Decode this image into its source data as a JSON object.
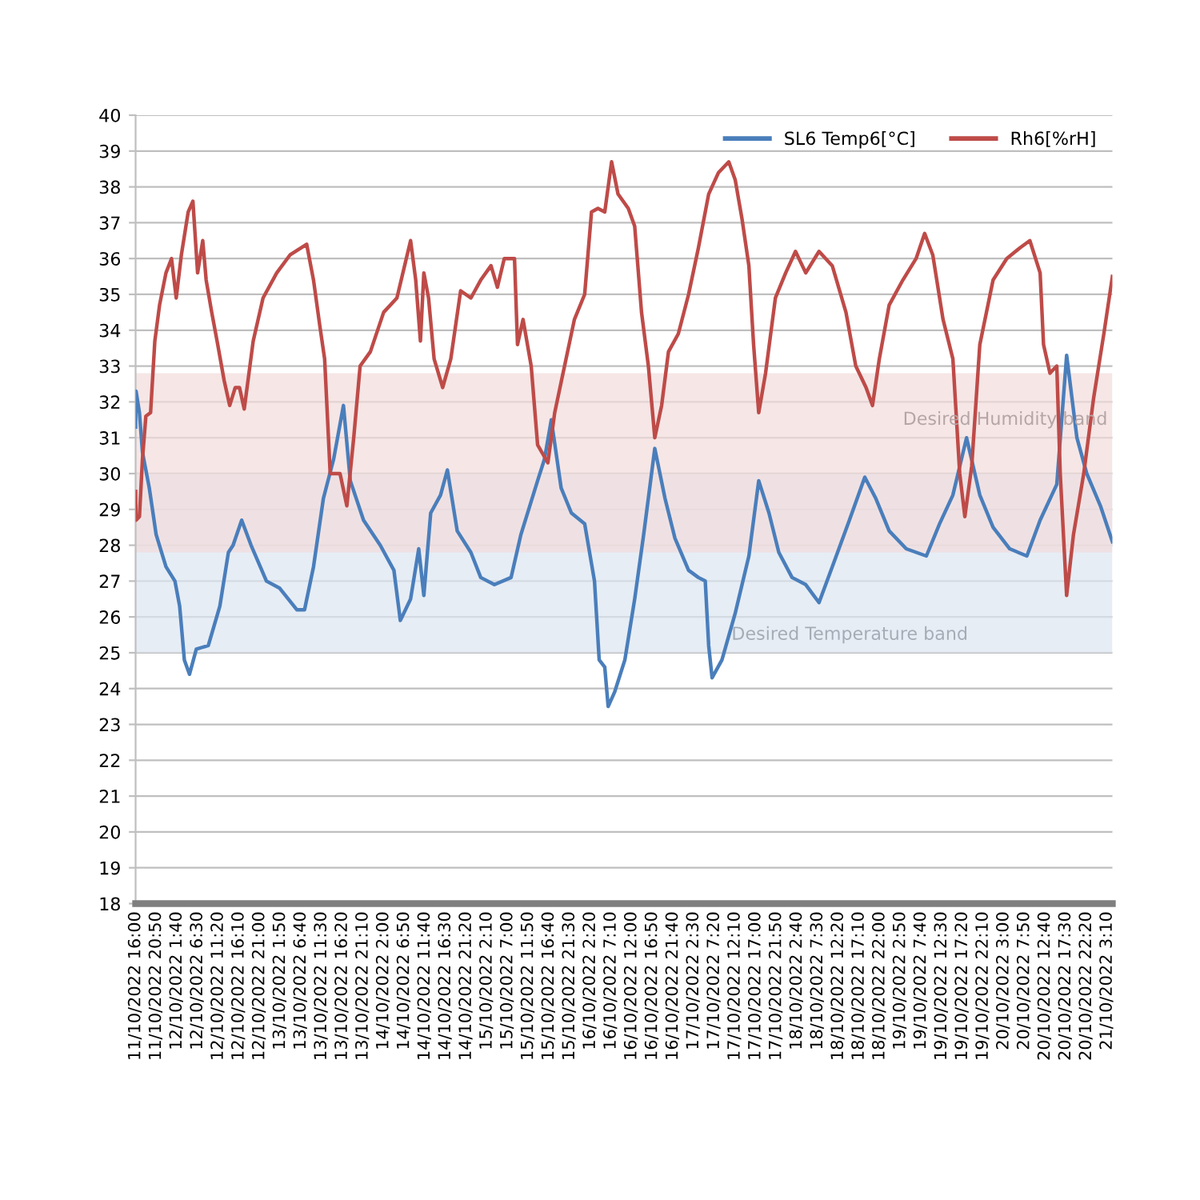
{
  "chart_data": {
    "type": "line",
    "series": [
      {
        "name": "SL6 Temp6[°C]",
        "color": "#4a7ebb",
        "x": [
          "2022-10-11T16:00",
          "2022-10-11T16:06",
          "2022-10-11T16:54",
          "2022-10-11T17:36",
          "2022-10-11T19:12",
          "2022-10-11T20:48",
          "2022-10-11T23:06",
          "2022-10-12T01:12",
          "2022-10-12T02:18",
          "2022-10-12T03:24",
          "2022-10-12T04:36",
          "2022-10-12T06:12",
          "2022-10-12T09:00",
          "2022-10-12T11:42",
          "2022-10-12T13:42",
          "2022-10-12T14:48",
          "2022-10-12T16:48",
          "2022-10-12T19:00",
          "2022-10-12T22:36",
          "2022-10-13T01:42",
          "2022-10-13T05:42",
          "2022-10-13T07:30",
          "2022-10-13T09:36",
          "2022-10-13T11:54",
          "2022-10-13T14:18",
          "2022-10-13T16:36",
          "2022-10-13T18:12",
          "2022-10-13T21:18",
          "2022-10-14T01:12",
          "2022-10-14T04:24",
          "2022-10-14T05:54",
          "2022-10-14T08:18",
          "2022-10-14T10:12",
          "2022-10-14T11:24",
          "2022-10-14T13:00",
          "2022-10-14T15:18",
          "2022-10-14T16:54",
          "2022-10-14T19:12",
          "2022-10-14T22:24",
          "2022-10-15T00:42",
          "2022-10-15T03:54",
          "2022-10-15T07:48",
          "2022-10-15T10:06",
          "2022-10-15T14:00",
          "2022-10-15T15:36",
          "2022-10-15T17:12",
          "2022-10-15T19:30",
          "2022-10-15T21:54",
          "2022-10-16T01:00",
          "2022-10-16T03:18",
          "2022-10-16T04:24",
          "2022-10-16T05:42",
          "2022-10-16T06:30",
          "2022-10-16T08:00",
          "2022-10-16T10:24",
          "2022-10-16T12:42",
          "2022-10-16T14:48",
          "2022-10-16T17:24",
          "2022-10-16T19:48",
          "2022-10-16T22:06",
          "2022-10-17T01:18",
          "2022-10-17T03:36",
          "2022-10-17T05:12",
          "2022-10-17T06:00",
          "2022-10-17T06:48",
          "2022-10-17T09:06",
          "2022-10-17T12:12",
          "2022-10-17T15:24",
          "2022-10-17T17:42",
          "2022-10-17T20:06",
          "2022-10-17T22:24",
          "2022-10-18T01:30",
          "2022-10-18T04:42",
          "2022-10-18T07:48",
          "2022-10-18T10:54",
          "2022-10-18T14:54",
          "2022-10-18T18:30",
          "2022-10-18T21:06",
          "2022-10-19T00:12",
          "2022-10-19T04:12",
          "2022-10-19T08:54",
          "2022-10-19T12:00",
          "2022-10-19T15:06",
          "2022-10-19T18:18",
          "2022-10-19T21:24",
          "2022-10-20T00:30",
          "2022-10-20T04:24",
          "2022-10-20T08:24",
          "2022-10-20T11:30",
          "2022-10-20T15:24",
          "2022-10-20T17:42",
          "2022-10-20T20:06",
          "2022-10-20T22:24",
          "2022-10-21T01:36",
          "2022-10-21T04:24"
        ],
        "values": [
          31.3,
          32.3,
          31.7,
          30.6,
          29.6,
          28.3,
          27.4,
          27.0,
          26.3,
          24.8,
          24.4,
          25.1,
          25.2,
          26.3,
          27.8,
          28.0,
          28.7,
          28.0,
          27.0,
          26.8,
          26.2,
          26.2,
          27.4,
          29.3,
          30.4,
          31.9,
          29.8,
          28.7,
          28.0,
          27.3,
          25.9,
          26.5,
          27.9,
          26.6,
          28.9,
          29.4,
          30.1,
          28.4,
          27.8,
          27.1,
          26.9,
          27.1,
          28.3,
          29.8,
          30.4,
          31.5,
          29.6,
          28.9,
          28.6,
          27.0,
          24.8,
          24.6,
          23.5,
          23.9,
          24.8,
          26.5,
          28.3,
          30.7,
          29.3,
          28.2,
          27.3,
          27.1,
          27.0,
          25.2,
          24.3,
          24.8,
          26.1,
          27.7,
          29.8,
          28.9,
          27.8,
          27.1,
          26.9,
          26.4,
          27.4,
          28.7,
          29.9,
          29.3,
          28.4,
          27.9,
          27.7,
          28.6,
          29.4,
          31.0,
          29.4,
          28.5,
          27.9,
          27.7,
          28.7,
          29.7,
          33.3,
          31.0,
          30.0,
          29.1,
          28.1
        ]
      },
      {
        "name": "Rh6[%rH]",
        "color": "#be4b48",
        "x": [
          "2022-10-11T16:00",
          "2022-10-11T16:06",
          "2022-10-11T16:54",
          "2022-10-11T17:36",
          "2022-10-11T18:24",
          "2022-10-11T19:30",
          "2022-10-11T20:30",
          "2022-10-11T21:36",
          "2022-10-11T23:06",
          "2022-10-12T00:24",
          "2022-10-12T01:30",
          "2022-10-12T02:42",
          "2022-10-12T04:18",
          "2022-10-12T05:24",
          "2022-10-12T06:30",
          "2022-10-12T07:42",
          "2022-10-12T08:30",
          "2022-10-12T09:48",
          "2022-10-12T11:12",
          "2022-10-12T12:42",
          "2022-10-12T14:00",
          "2022-10-12T15:18",
          "2022-10-12T16:18",
          "2022-10-12T17:24",
          "2022-10-12T19:30",
          "2022-10-12T21:48",
          "2022-10-13T01:00",
          "2022-10-13T04:06",
          "2022-10-13T08:00",
          "2022-10-13T09:36",
          "2022-10-13T11:06",
          "2022-10-13T12:12",
          "2022-10-13T13:30",
          "2022-10-13T15:48",
          "2022-10-13T17:24",
          "2022-10-13T19:00",
          "2022-10-13T20:30",
          "2022-10-13T22:54",
          "2022-10-14T02:00",
          "2022-10-14T05:06",
          "2022-10-14T08:18",
          "2022-10-14T09:30",
          "2022-10-14T10:36",
          "2022-10-14T11:24",
          "2022-10-14T12:30",
          "2022-10-14T13:48",
          "2022-10-14T15:48",
          "2022-10-14T17:42",
          "2022-10-14T20:00",
          "2022-10-14T22:24",
          "2022-10-15T00:42",
          "2022-10-15T03:06",
          "2022-10-15T04:36",
          "2022-10-15T06:12",
          "2022-10-15T08:36",
          "2022-10-15T09:18",
          "2022-10-15T10:36",
          "2022-10-15T12:30",
          "2022-10-15T14:00",
          "2022-10-15T16:24",
          "2022-10-15T18:00",
          "2022-10-15T20:18",
          "2022-10-15T22:36",
          "2022-10-16T01:00",
          "2022-10-16T02:36",
          "2022-10-16T04:06",
          "2022-10-16T05:42",
          "2022-10-16T07:18",
          "2022-10-16T08:48",
          "2022-10-16T11:12",
          "2022-10-16T12:42",
          "2022-10-16T14:18",
          "2022-10-16T15:54",
          "2022-10-16T17:24",
          "2022-10-16T19:00",
          "2022-10-16T20:36",
          "2022-10-16T22:54",
          "2022-10-17T01:18",
          "2022-10-17T03:36",
          "2022-10-17T06:00",
          "2022-10-17T08:18",
          "2022-10-17T10:42",
          "2022-10-17T12:12",
          "2022-10-17T13:48",
          "2022-10-17T15:24",
          "2022-10-17T16:30",
          "2022-10-17T17:42",
          "2022-10-17T19:18",
          "2022-10-17T21:36",
          "2022-10-18T00:00",
          "2022-10-18T02:18",
          "2022-10-18T04:42",
          "2022-10-18T07:48",
          "2022-10-18T10:54",
          "2022-10-18T14:06",
          "2022-10-18T16:24",
          "2022-10-18T18:48",
          "2022-10-18T20:18",
          "2022-10-18T21:54",
          "2022-10-19T00:12",
          "2022-10-19T03:24",
          "2022-10-19T06:30",
          "2022-10-19T08:30",
          "2022-10-19T10:24",
          "2022-10-19T12:48",
          "2022-10-19T15:06",
          "2022-10-19T16:42",
          "2022-10-19T17:54",
          "2022-10-19T19:30",
          "2022-10-19T21:24",
          "2022-10-20T00:30",
          "2022-10-20T03:42",
          "2022-10-20T06:48",
          "2022-10-20T09:06",
          "2022-10-20T11:30",
          "2022-10-20T12:18",
          "2022-10-20T13:48",
          "2022-10-20T15:24",
          "2022-10-20T16:12",
          "2022-10-20T17:42",
          "2022-10-20T19:18",
          "2022-10-20T21:42",
          "2022-10-21T00:00",
          "2022-10-21T02:24",
          "2022-10-21T04:24"
        ],
        "values": [
          29.5,
          28.7,
          28.8,
          30.4,
          31.6,
          31.7,
          33.7,
          34.7,
          35.6,
          36.0,
          34.9,
          36.1,
          37.3,
          37.6,
          35.6,
          36.5,
          35.4,
          34.5,
          33.6,
          32.6,
          31.9,
          32.4,
          32.4,
          31.8,
          33.7,
          34.9,
          35.6,
          36.1,
          36.4,
          35.4,
          34.1,
          33.2,
          30.0,
          30.0,
          29.1,
          31.0,
          33.0,
          33.4,
          34.5,
          34.9,
          36.5,
          35.4,
          33.7,
          35.6,
          34.9,
          33.2,
          32.4,
          33.2,
          35.1,
          34.9,
          35.4,
          35.8,
          35.2,
          36.0,
          36.0,
          33.6,
          34.3,
          33.0,
          30.8,
          30.3,
          31.7,
          33.0,
          34.3,
          35.0,
          37.3,
          37.4,
          37.3,
          38.7,
          37.8,
          37.4,
          36.9,
          34.5,
          33.0,
          31.0,
          31.9,
          33.4,
          33.9,
          35.0,
          36.3,
          37.8,
          38.4,
          38.7,
          38.2,
          37.1,
          35.8,
          33.6,
          31.7,
          32.8,
          34.9,
          35.6,
          36.2,
          35.6,
          36.2,
          35.8,
          34.5,
          33.0,
          32.4,
          31.9,
          33.2,
          34.7,
          35.4,
          36.0,
          36.7,
          36.1,
          34.3,
          33.2,
          30.0,
          28.8,
          30.2,
          33.6,
          35.4,
          36.0,
          36.3,
          36.5,
          35.6,
          33.6,
          32.8,
          33.0,
          30.0,
          26.6,
          28.3,
          30.0,
          32.1,
          33.9,
          35.5
        ]
      }
    ],
    "xlim": [
      "2022-10-11T16:00",
      "2022-10-21T04:24"
    ],
    "xticks": [
      {
        "value": "2022-10-11T16:00",
        "label": "11/10/2022 16:00"
      },
      {
        "value": "2022-10-11T20:50",
        "label": "11/10/2022 20:50"
      },
      {
        "value": "2022-10-12T01:40",
        "label": "12/10/2022 1:40"
      },
      {
        "value": "2022-10-12T06:30",
        "label": "12/10/2022 6:30"
      },
      {
        "value": "2022-10-12T11:20",
        "label": "12/10/2022 11:20"
      },
      {
        "value": "2022-10-12T16:10",
        "label": "12/10/2022 16:10"
      },
      {
        "value": "2022-10-12T21:00",
        "label": "12/10/2022 21:00"
      },
      {
        "value": "2022-10-13T01:50",
        "label": "13/10/2022 1:50"
      },
      {
        "value": "2022-10-13T06:40",
        "label": "13/10/2022 6:40"
      },
      {
        "value": "2022-10-13T11:30",
        "label": "13/10/2022 11:30"
      },
      {
        "value": "2022-10-13T16:20",
        "label": "13/10/2022 16:20"
      },
      {
        "value": "2022-10-13T21:10",
        "label": "13/10/2022 21:10"
      },
      {
        "value": "2022-10-14T02:00",
        "label": "14/10/2022 2:00"
      },
      {
        "value": "2022-10-14T06:50",
        "label": "14/10/2022 6:50"
      },
      {
        "value": "2022-10-14T11:40",
        "label": "14/10/2022 11:40"
      },
      {
        "value": "2022-10-14T16:30",
        "label": "14/10/2022 16:30"
      },
      {
        "value": "2022-10-14T21:20",
        "label": "14/10/2022 21:20"
      },
      {
        "value": "2022-10-15T02:10",
        "label": "15/10/2022 2:10"
      },
      {
        "value": "2022-10-15T07:00",
        "label": "15/10/2022 7:00"
      },
      {
        "value": "2022-10-15T11:50",
        "label": "15/10/2022 11:50"
      },
      {
        "value": "2022-10-15T16:40",
        "label": "15/10/2022 16:40"
      },
      {
        "value": "2022-10-15T21:30",
        "label": "15/10/2022 21:30"
      },
      {
        "value": "2022-10-16T02:20",
        "label": "16/10/2022 2:20"
      },
      {
        "value": "2022-10-16T07:10",
        "label": "16/10/2022 7:10"
      },
      {
        "value": "2022-10-16T12:00",
        "label": "16/10/2022 12:00"
      },
      {
        "value": "2022-10-16T16:50",
        "label": "16/10/2022 16:50"
      },
      {
        "value": "2022-10-16T21:40",
        "label": "16/10/2022 21:40"
      },
      {
        "value": "2022-10-17T02:30",
        "label": "17/10/2022 2:30"
      },
      {
        "value": "2022-10-17T07:20",
        "label": "17/10/2022 7:20"
      },
      {
        "value": "2022-10-17T12:10",
        "label": "17/10/2022 12:10"
      },
      {
        "value": "2022-10-17T17:00",
        "label": "17/10/2022 17:00"
      },
      {
        "value": "2022-10-17T21:50",
        "label": "17/10/2022 21:50"
      },
      {
        "value": "2022-10-18T02:40",
        "label": "18/10/2022 2:40"
      },
      {
        "value": "2022-10-18T07:30",
        "label": "18/10/2022 7:30"
      },
      {
        "value": "2022-10-18T12:20",
        "label": "18/10/2022 12:20"
      },
      {
        "value": "2022-10-18T17:10",
        "label": "18/10/2022 17:10"
      },
      {
        "value": "2022-10-18T22:00",
        "label": "18/10/2022 22:00"
      },
      {
        "value": "2022-10-19T02:50",
        "label": "19/10/2022 2:50"
      },
      {
        "value": "2022-10-19T07:40",
        "label": "19/10/2022 7:40"
      },
      {
        "value": "2022-10-19T12:30",
        "label": "19/10/2022 12:30"
      },
      {
        "value": "2022-10-19T17:20",
        "label": "19/10/2022 17:20"
      },
      {
        "value": "2022-10-19T22:10",
        "label": "19/10/2022 22:10"
      },
      {
        "value": "2022-10-20T03:00",
        "label": "20/10/2022 3:00"
      },
      {
        "value": "2022-10-20T07:50",
        "label": "20/10/2022 7:50"
      },
      {
        "value": "2022-10-20T12:40",
        "label": "20/10/2022 12:40"
      },
      {
        "value": "2022-10-20T17:30",
        "label": "20/10/2022 17:30"
      },
      {
        "value": "2022-10-20T22:20",
        "label": "20/10/2022 22:20"
      },
      {
        "value": "2022-10-21T03:10",
        "label": "21/10/2022 3:10"
      }
    ],
    "ylim": [
      18,
      40
    ],
    "yticks": [
      18,
      19,
      20,
      21,
      22,
      23,
      24,
      25,
      26,
      27,
      28,
      29,
      30,
      31,
      32,
      33,
      34,
      35,
      36,
      37,
      38,
      39,
      40
    ],
    "bands": [
      {
        "axis": "y",
        "from": 25,
        "to": 30,
        "label": "Desired Temperature band",
        "color": "#dce6f1"
      },
      {
        "axis": "y",
        "from": 27.8,
        "to": 32.8,
        "label": "Desired Humidity band",
        "color": "#f2dcdb"
      }
    ],
    "grid": "y",
    "legend": "top right",
    "line_style": "solid",
    "marker": "none"
  }
}
